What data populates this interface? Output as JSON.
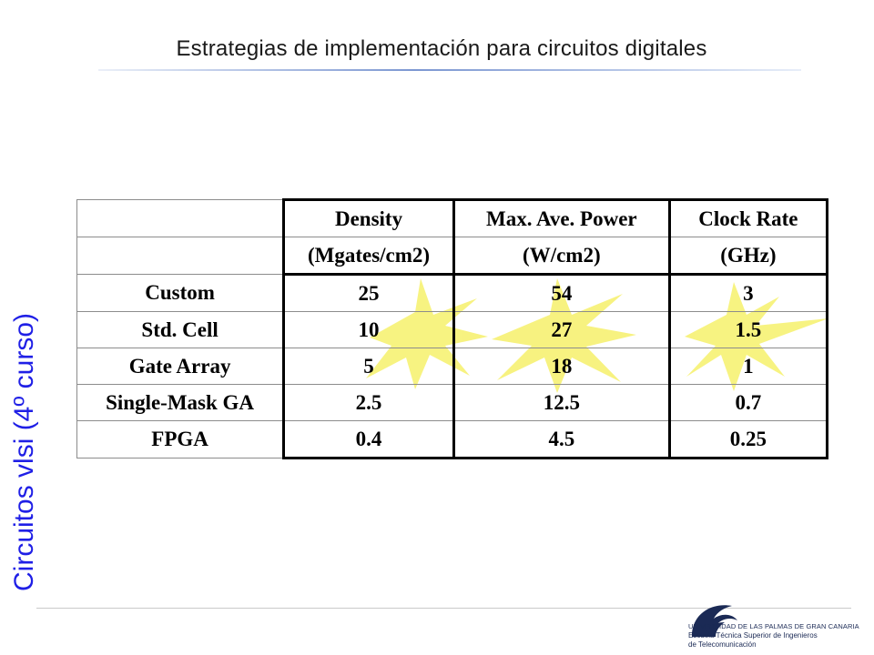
{
  "slide": {
    "title": "Estrategias de implementación para circuitos digitales",
    "side_label": "Circuitos vlsi (4º curso)"
  },
  "table": {
    "header_top": [
      "",
      "Density",
      "Max. Ave. Power",
      "Clock Rate"
    ],
    "header_units": [
      "",
      "(Mgates/cm2)",
      "(W/cm2)",
      "(GHz)"
    ],
    "rows": [
      [
        "Custom",
        "25",
        "54",
        "3"
      ],
      [
        "Std. Cell",
        "10",
        "27",
        "1.5"
      ],
      [
        "Gate Array",
        "5",
        "18",
        "1"
      ],
      [
        "Single-Mask GA",
        "2.5",
        "12.5",
        "0.7"
      ],
      [
        "FPGA",
        "0.4",
        "4.5",
        "0.25"
      ]
    ],
    "highlight_color": "#f7f27a",
    "highlighted_row": "Std. Cell"
  },
  "logo": {
    "line1": "UNIVERSIDAD DE LAS PALMAS DE GRAN CANARIA",
    "line2": "Escuela Técnica Superior de Ingenieros",
    "line3": "de Telecomunicación",
    "color": "#1b2a55"
  }
}
